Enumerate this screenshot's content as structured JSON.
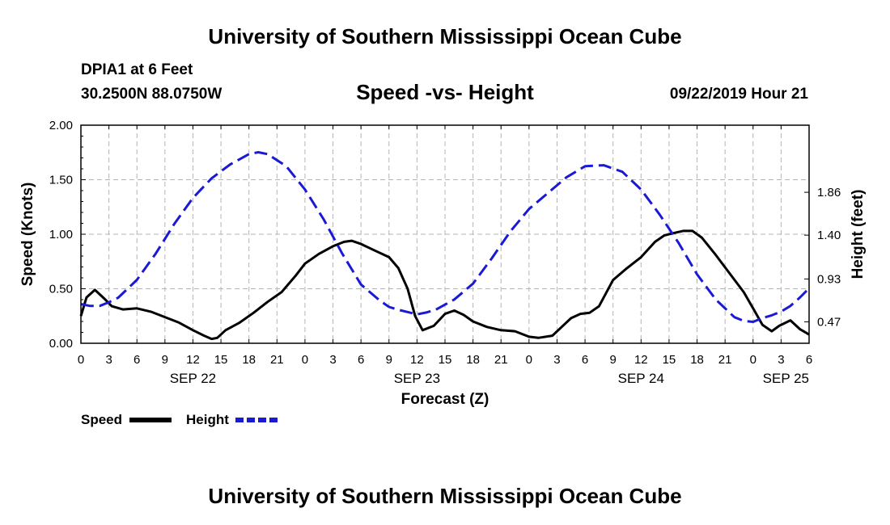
{
  "header": {
    "title": "University of Southern Mississippi Ocean Cube",
    "station": "DPIA1 at 6 Feet",
    "coords": "30.2500N 88.0750W",
    "subtitle": "Speed -vs- Height",
    "datetime": "09/22/2019 Hour 21"
  },
  "footer": {
    "title": "University of Southern Mississippi Ocean Cube"
  },
  "legend": {
    "speed_label": "Speed",
    "height_label": "Height"
  },
  "colors": {
    "speed": "#000000",
    "height": "#1a1ad6",
    "grid": "#b4b4b4"
  },
  "chart_data": {
    "type": "line",
    "title": "Speed -vs- Height",
    "xlabel": "Forecast (Z)",
    "ylabel_left": "Speed (Knots)",
    "ylabel_right": "Height (feet)",
    "x_unit": "forecast hour (0 = SEP 22 00Z)",
    "xlim": [
      0,
      78
    ],
    "ylim_left": [
      0,
      2
    ],
    "ylim_right": [
      0.24,
      2.58
    ],
    "x_ticks": [
      {
        "x": 0,
        "label": "0"
      },
      {
        "x": 3,
        "label": "3"
      },
      {
        "x": 6,
        "label": "6"
      },
      {
        "x": 9,
        "label": "9"
      },
      {
        "x": 12,
        "label": "12"
      },
      {
        "x": 15,
        "label": "15"
      },
      {
        "x": 18,
        "label": "18"
      },
      {
        "x": 21,
        "label": "21"
      },
      {
        "x": 24,
        "label": "0"
      },
      {
        "x": 27,
        "label": "3"
      },
      {
        "x": 30,
        "label": "6"
      },
      {
        "x": 33,
        "label": "9"
      },
      {
        "x": 36,
        "label": "12"
      },
      {
        "x": 39,
        "label": "15"
      },
      {
        "x": 42,
        "label": "18"
      },
      {
        "x": 45,
        "label": "21"
      },
      {
        "x": 48,
        "label": "0"
      },
      {
        "x": 51,
        "label": "3"
      },
      {
        "x": 54,
        "label": "6"
      },
      {
        "x": 57,
        "label": "9"
      },
      {
        "x": 60,
        "label": "12"
      },
      {
        "x": 63,
        "label": "15"
      },
      {
        "x": 66,
        "label": "18"
      },
      {
        "x": 69,
        "label": "21"
      },
      {
        "x": 72,
        "label": "0"
      },
      {
        "x": 75,
        "label": "3"
      },
      {
        "x": 78,
        "label": "6"
      }
    ],
    "date_labels": [
      {
        "x": 12,
        "label": "SEP 22"
      },
      {
        "x": 36,
        "label": "SEP 23"
      },
      {
        "x": 60,
        "label": "SEP 24"
      },
      {
        "x": 78,
        "label": "SEP 25"
      }
    ],
    "y_ticks_left": [
      {
        "y": 0,
        "label": "0.00"
      },
      {
        "y": 0.5,
        "label": "0.50"
      },
      {
        "y": 1.0,
        "label": "1.00"
      },
      {
        "y": 1.5,
        "label": "1.50"
      },
      {
        "y": 2.0,
        "label": "2.00"
      }
    ],
    "y_ticks_right": [
      {
        "y": 0.47,
        "label": "0.47"
      },
      {
        "y": 0.93,
        "label": "0.93"
      },
      {
        "y": 1.4,
        "label": "1.40"
      },
      {
        "y": 1.86,
        "label": "1.86"
      }
    ],
    "series": [
      {
        "name": "Speed",
        "axis": "left",
        "style": "solid",
        "x": [
          0,
          0.6,
          1.5,
          2.5,
          3.3,
          4.5,
          6,
          7.5,
          9,
          10.5,
          12,
          13.2,
          14,
          14.6,
          15.5,
          17,
          18.5,
          20,
          21.5,
          23,
          24,
          25.5,
          27,
          28.2,
          29,
          30,
          31.5,
          33,
          34,
          35,
          35.8,
          36.6,
          37.8,
          39,
          40,
          41,
          42,
          43.5,
          45,
          46.5,
          48,
          49,
          50.5,
          51.5,
          52.5,
          53.5,
          54.5,
          55.5,
          57,
          58.5,
          60,
          61.5,
          62.5,
          63.5,
          64.5,
          65.5,
          66.5,
          68,
          69.5,
          71,
          72,
          73,
          74,
          74.8,
          76,
          77,
          78
        ],
        "y": [
          0.25,
          0.42,
          0.49,
          0.41,
          0.34,
          0.31,
          0.32,
          0.29,
          0.24,
          0.19,
          0.12,
          0.07,
          0.04,
          0.05,
          0.12,
          0.19,
          0.28,
          0.38,
          0.47,
          0.62,
          0.73,
          0.82,
          0.89,
          0.93,
          0.94,
          0.91,
          0.85,
          0.79,
          0.69,
          0.5,
          0.25,
          0.12,
          0.16,
          0.27,
          0.3,
          0.26,
          0.2,
          0.15,
          0.12,
          0.11,
          0.06,
          0.05,
          0.07,
          0.15,
          0.23,
          0.27,
          0.28,
          0.34,
          0.58,
          0.69,
          0.79,
          0.93,
          0.99,
          1.01,
          1.03,
          1.03,
          0.97,
          0.81,
          0.64,
          0.47,
          0.32,
          0.17,
          0.11,
          0.16,
          0.21,
          0.13,
          0.08
        ]
      },
      {
        "name": "Height",
        "axis": "right",
        "style": "dashed",
        "x": [
          0,
          1,
          2,
          3,
          4,
          6,
          8,
          10,
          12,
          14,
          16,
          18,
          19,
          20,
          22,
          24,
          26,
          28,
          30,
          32,
          33,
          34,
          36,
          37,
          38,
          40,
          42,
          44,
          46,
          48,
          50,
          52,
          54,
          56,
          58,
          60,
          62,
          64,
          66,
          68,
          70,
          71,
          72,
          73,
          74,
          75,
          76,
          77,
          78
        ],
        "y": [
          0.66,
          0.64,
          0.64,
          0.68,
          0.73,
          0.92,
          1.2,
          1.52,
          1.8,
          2.01,
          2.16,
          2.27,
          2.29,
          2.27,
          2.14,
          1.89,
          1.57,
          1.2,
          0.87,
          0.7,
          0.63,
          0.6,
          0.55,
          0.57,
          0.6,
          0.71,
          0.88,
          1.15,
          1.44,
          1.68,
          1.85,
          2.02,
          2.14,
          2.15,
          2.08,
          1.89,
          1.62,
          1.32,
          0.98,
          0.71,
          0.52,
          0.48,
          0.47,
          0.51,
          0.54,
          0.58,
          0.64,
          0.73,
          0.83
        ]
      }
    ]
  }
}
